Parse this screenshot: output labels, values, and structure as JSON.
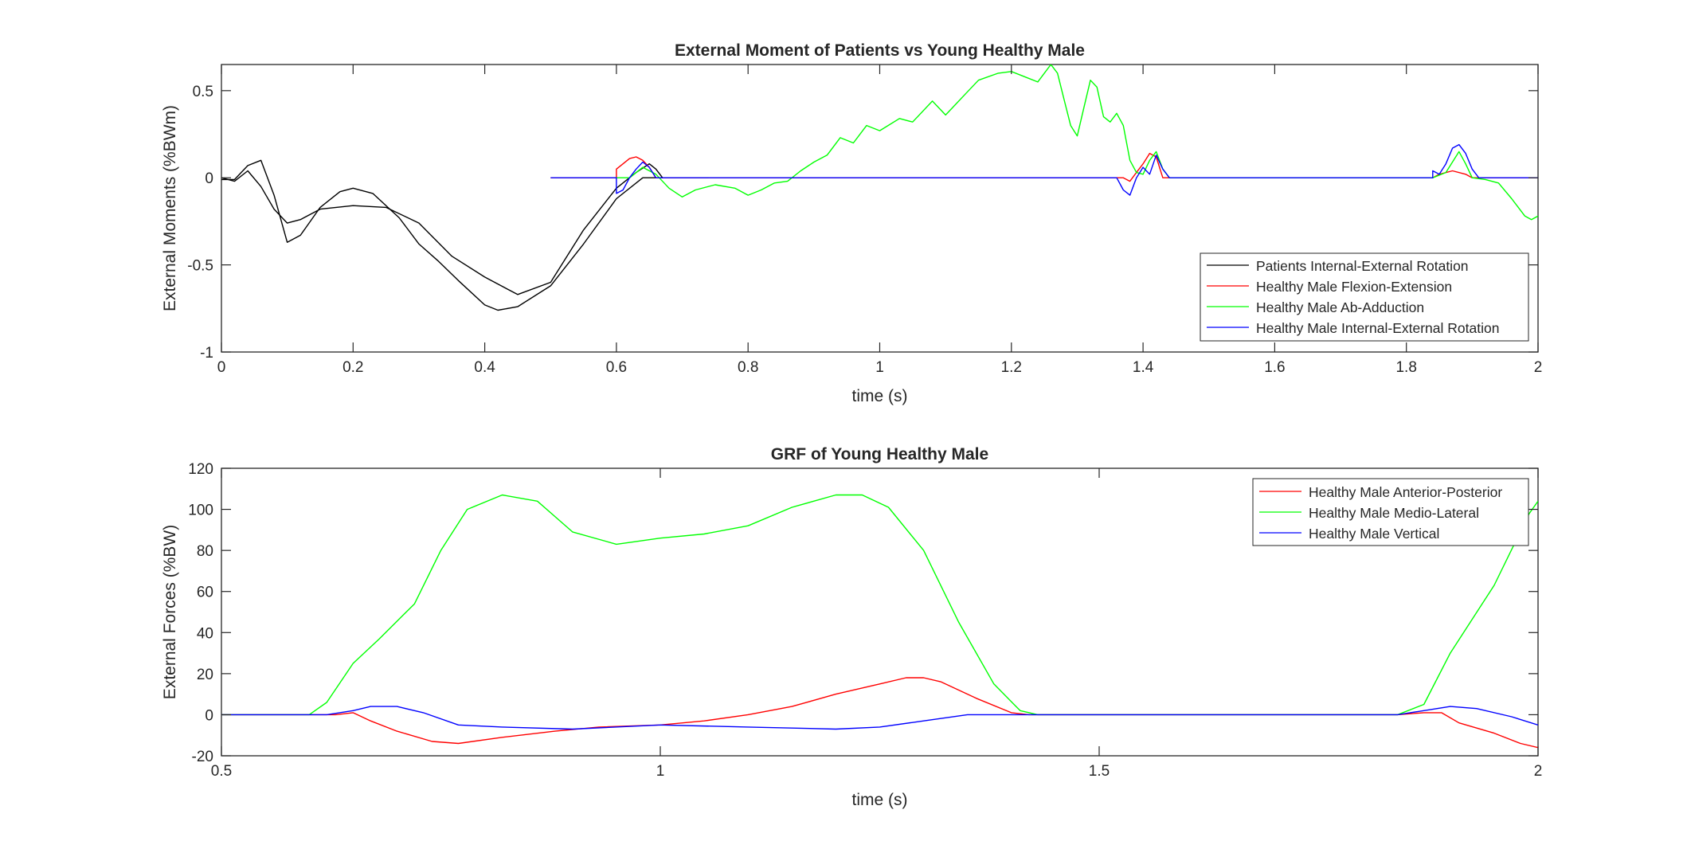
{
  "colors": {
    "black": "#000000",
    "red": "#ff0000",
    "green": "#00ff00",
    "blue": "#0000ff",
    "axis": "#262626",
    "background": "#ffffff"
  },
  "chart_data": [
    {
      "type": "line",
      "title": "External Moment of Patients vs Young Healthy Male",
      "xlabel": "time (s)",
      "ylabel": "External Moments (%BWm)",
      "xlim": [
        0,
        2
      ],
      "ylim": [
        -1,
        0.65
      ],
      "xticks": [
        0,
        0.2,
        0.4,
        0.6,
        0.8,
        1,
        1.2,
        1.4,
        1.6,
        1.8,
        2
      ],
      "xticklabels": [
        "0",
        "0.2",
        "0.4",
        "0.6",
        "0.8",
        "1",
        "1.2",
        "1.4",
        "1.6",
        "1.8",
        "2"
      ],
      "yticks": [
        -1,
        -0.5,
        0,
        0.5
      ],
      "yticklabels": [
        "-1",
        "-0.5",
        "0",
        "0.5"
      ],
      "grid": false,
      "legend": "bottom-right",
      "series": [
        {
          "name": "Patients Internal-External Rotation",
          "color": "#000000",
          "legend": true,
          "points": [
            [
              0,
              0
            ],
            [
              0.02,
              -0.02
            ],
            [
              0.04,
              0.04
            ],
            [
              0.06,
              -0.05
            ],
            [
              0.08,
              -0.18
            ],
            [
              0.1,
              -0.26
            ],
            [
              0.12,
              -0.24
            ],
            [
              0.15,
              -0.18
            ],
            [
              0.2,
              -0.16
            ],
            [
              0.25,
              -0.17
            ],
            [
              0.3,
              -0.26
            ],
            [
              0.35,
              -0.45
            ],
            [
              0.4,
              -0.57
            ],
            [
              0.45,
              -0.67
            ],
            [
              0.5,
              -0.6
            ],
            [
              0.55,
              -0.3
            ],
            [
              0.6,
              -0.06
            ],
            [
              0.63,
              0.03
            ],
            [
              0.65,
              0.08
            ],
            [
              0.66,
              0.05
            ],
            [
              0.67,
              0
            ]
          ]
        },
        {
          "name": "",
          "color": "#000000",
          "legend": false,
          "points": [
            [
              0,
              -0.01
            ],
            [
              0.02,
              -0.01
            ],
            [
              0.04,
              0.07
            ],
            [
              0.06,
              0.1
            ],
            [
              0.08,
              -0.1
            ],
            [
              0.1,
              -0.37
            ],
            [
              0.12,
              -0.33
            ],
            [
              0.15,
              -0.17
            ],
            [
              0.18,
              -0.08
            ],
            [
              0.2,
              -0.06
            ],
            [
              0.23,
              -0.09
            ],
            [
              0.27,
              -0.23
            ],
            [
              0.3,
              -0.38
            ],
            [
              0.33,
              -0.48
            ],
            [
              0.36,
              -0.59
            ],
            [
              0.4,
              -0.73
            ],
            [
              0.42,
              -0.76
            ],
            [
              0.45,
              -0.74
            ],
            [
              0.5,
              -0.62
            ],
            [
              0.55,
              -0.38
            ],
            [
              0.6,
              -0.12
            ],
            [
              0.64,
              0
            ],
            [
              0.74,
              0
            ]
          ]
        },
        {
          "name": "Healthy Male Flexion-Extension",
          "color": "#ff0000",
          "legend": true,
          "points": [
            [
              0.5,
              0
            ],
            [
              0.6,
              0
            ],
            [
              0.6,
              0.05
            ],
            [
              0.61,
              0.08
            ],
            [
              0.62,
              0.11
            ],
            [
              0.63,
              0.12
            ],
            [
              0.64,
              0.1
            ],
            [
              0.65,
              0.06
            ],
            [
              0.66,
              0
            ],
            [
              1.37,
              0
            ],
            [
              1.38,
              -0.02
            ],
            [
              1.39,
              0.03
            ],
            [
              1.4,
              0.08
            ],
            [
              1.41,
              0.14
            ],
            [
              1.42,
              0.12
            ],
            [
              1.43,
              0
            ],
            [
              1.84,
              0
            ],
            [
              1.85,
              0.02
            ],
            [
              1.87,
              0.04
            ],
            [
              1.89,
              0.02
            ],
            [
              1.9,
              0
            ],
            [
              2,
              0
            ]
          ]
        },
        {
          "name": "Healthy Male Ab-Adduction",
          "color": "#00ff00",
          "legend": true,
          "points": [
            [
              0.6,
              0
            ],
            [
              0.62,
              0
            ],
            [
              0.64,
              0.06
            ],
            [
              0.66,
              0.02
            ],
            [
              0.68,
              -0.06
            ],
            [
              0.7,
              -0.11
            ],
            [
              0.72,
              -0.07
            ],
            [
              0.75,
              -0.04
            ],
            [
              0.78,
              -0.06
            ],
            [
              0.8,
              -0.1
            ],
            [
              0.82,
              -0.07
            ],
            [
              0.84,
              -0.03
            ],
            [
              0.86,
              -0.02
            ],
            [
              0.88,
              0.04
            ],
            [
              0.9,
              0.09
            ],
            [
              0.92,
              0.13
            ],
            [
              0.94,
              0.23
            ],
            [
              0.96,
              0.2
            ],
            [
              0.98,
              0.3
            ],
            [
              1,
              0.27
            ],
            [
              1.03,
              0.34
            ],
            [
              1.05,
              0.32
            ],
            [
              1.08,
              0.44
            ],
            [
              1.1,
              0.36
            ],
            [
              1.13,
              0.48
            ],
            [
              1.15,
              0.56
            ],
            [
              1.18,
              0.6
            ],
            [
              1.2,
              0.61
            ],
            [
              1.22,
              0.58
            ],
            [
              1.24,
              0.55
            ],
            [
              1.26,
              0.65
            ],
            [
              1.27,
              0.6
            ],
            [
              1.28,
              0.45
            ],
            [
              1.29,
              0.3
            ],
            [
              1.3,
              0.24
            ],
            [
              1.31,
              0.4
            ],
            [
              1.32,
              0.56
            ],
            [
              1.33,
              0.52
            ],
            [
              1.34,
              0.35
            ],
            [
              1.35,
              0.32
            ],
            [
              1.36,
              0.37
            ],
            [
              1.37,
              0.3
            ],
            [
              1.38,
              0.1
            ],
            [
              1.39,
              0.03
            ],
            [
              1.4,
              0.02
            ],
            [
              1.41,
              0.1
            ],
            [
              1.42,
              0.15
            ],
            [
              1.43,
              0.05
            ],
            [
              1.44,
              0
            ],
            [
              1.84,
              0
            ],
            [
              1.86,
              0.03
            ],
            [
              1.88,
              0.15
            ],
            [
              1.89,
              0.08
            ],
            [
              1.9,
              0
            ],
            [
              1.92,
              -0.01
            ],
            [
              1.94,
              -0.03
            ],
            [
              1.96,
              -0.12
            ],
            [
              1.98,
              -0.22
            ],
            [
              1.99,
              -0.24
            ],
            [
              2,
              -0.22
            ]
          ]
        },
        {
          "name": "Healthy Male Internal-External Rotation",
          "color": "#0000ff",
          "legend": true,
          "points": [
            [
              0.5,
              0
            ],
            [
              0.6,
              0
            ],
            [
              0.6,
              -0.09
            ],
            [
              0.61,
              -0.07
            ],
            [
              0.62,
              0
            ],
            [
              0.63,
              0.05
            ],
            [
              0.64,
              0.09
            ],
            [
              0.65,
              0.06
            ],
            [
              0.66,
              0
            ],
            [
              1.36,
              0
            ],
            [
              1.37,
              -0.07
            ],
            [
              1.38,
              -0.1
            ],
            [
              1.39,
              0
            ],
            [
              1.4,
              0.06
            ],
            [
              1.41,
              0.02
            ],
            [
              1.42,
              0.13
            ],
            [
              1.43,
              0.05
            ],
            [
              1.44,
              0
            ],
            [
              1.84,
              0
            ],
            [
              1.84,
              0.04
            ],
            [
              1.85,
              0.02
            ],
            [
              1.86,
              0.08
            ],
            [
              1.87,
              0.17
            ],
            [
              1.88,
              0.19
            ],
            [
              1.89,
              0.14
            ],
            [
              1.9,
              0.05
            ],
            [
              1.91,
              0
            ],
            [
              2,
              0
            ]
          ]
        }
      ]
    },
    {
      "type": "line",
      "title": "GRF of Young Healthy Male",
      "xlabel": "time (s)",
      "ylabel": "External Forces (%BW)",
      "xlim": [
        0.5,
        2
      ],
      "ylim": [
        -20,
        120
      ],
      "xticks": [
        0.5,
        1,
        1.5,
        2
      ],
      "xticklabels": [
        "0.5",
        "1",
        "1.5",
        "2"
      ],
      "yticks": [
        -20,
        0,
        20,
        40,
        60,
        80,
        100,
        120
      ],
      "yticklabels": [
        "-20",
        "0",
        "20",
        "40",
        "60",
        "80",
        "100",
        "120"
      ],
      "grid": false,
      "legend": "top-right",
      "series": [
        {
          "name": "Healthy Male Anterior-Posterior",
          "color": "#ff0000",
          "legend": true,
          "points": [
            [
              0.5,
              0
            ],
            [
              0.61,
              0
            ],
            [
              0.63,
              0
            ],
            [
              0.65,
              1
            ],
            [
              0.67,
              -3
            ],
            [
              0.7,
              -8
            ],
            [
              0.74,
              -13
            ],
            [
              0.77,
              -14
            ],
            [
              0.82,
              -11
            ],
            [
              0.88,
              -8
            ],
            [
              0.93,
              -6
            ],
            [
              1,
              -5
            ],
            [
              1.05,
              -3
            ],
            [
              1.1,
              0
            ],
            [
              1.15,
              4
            ],
            [
              1.2,
              10
            ],
            [
              1.25,
              15
            ],
            [
              1.28,
              18
            ],
            [
              1.3,
              18
            ],
            [
              1.32,
              16
            ],
            [
              1.36,
              8
            ],
            [
              1.4,
              1
            ],
            [
              1.42,
              0
            ],
            [
              1.84,
              0
            ],
            [
              1.87,
              1
            ],
            [
              1.89,
              1
            ],
            [
              1.91,
              -4
            ],
            [
              1.95,
              -9
            ],
            [
              1.98,
              -14
            ],
            [
              2,
              -16
            ]
          ]
        },
        {
          "name": "Healthy Male Medio-Lateral",
          "color": "#00ff00",
          "legend": true,
          "points": [
            [
              0.5,
              0
            ],
            [
              0.6,
              0
            ],
            [
              0.62,
              6
            ],
            [
              0.65,
              25
            ],
            [
              0.68,
              37
            ],
            [
              0.72,
              54
            ],
            [
              0.75,
              80
            ],
            [
              0.78,
              100
            ],
            [
              0.82,
              107
            ],
            [
              0.86,
              104
            ],
            [
              0.9,
              89
            ],
            [
              0.95,
              83
            ],
            [
              1,
              86
            ],
            [
              1.05,
              88
            ],
            [
              1.1,
              92
            ],
            [
              1.15,
              101
            ],
            [
              1.2,
              107
            ],
            [
              1.23,
              107
            ],
            [
              1.26,
              101
            ],
            [
              1.3,
              80
            ],
            [
              1.34,
              45
            ],
            [
              1.38,
              15
            ],
            [
              1.41,
              2
            ],
            [
              1.43,
              0
            ],
            [
              1.84,
              0
            ],
            [
              1.87,
              5
            ],
            [
              1.9,
              30
            ],
            [
              1.95,
              63
            ],
            [
              1.99,
              98
            ],
            [
              2,
              104
            ]
          ]
        },
        {
          "name": "Healthy Male Vertical",
          "color": "#0000ff",
          "legend": true,
          "points": [
            [
              0.5,
              0
            ],
            [
              0.62,
              0
            ],
            [
              0.65,
              2
            ],
            [
              0.67,
              4
            ],
            [
              0.7,
              4
            ],
            [
              0.73,
              1
            ],
            [
              0.77,
              -5
            ],
            [
              0.82,
              -6
            ],
            [
              0.9,
              -7
            ],
            [
              1,
              -5
            ],
            [
              1.1,
              -6
            ],
            [
              1.2,
              -7
            ],
            [
              1.25,
              -6
            ],
            [
              1.3,
              -3
            ],
            [
              1.35,
              0
            ],
            [
              1.4,
              0
            ],
            [
              1.84,
              0
            ],
            [
              1.87,
              2
            ],
            [
              1.9,
              4
            ],
            [
              1.93,
              3
            ],
            [
              1.97,
              -1
            ],
            [
              2,
              -5
            ]
          ]
        }
      ]
    }
  ]
}
